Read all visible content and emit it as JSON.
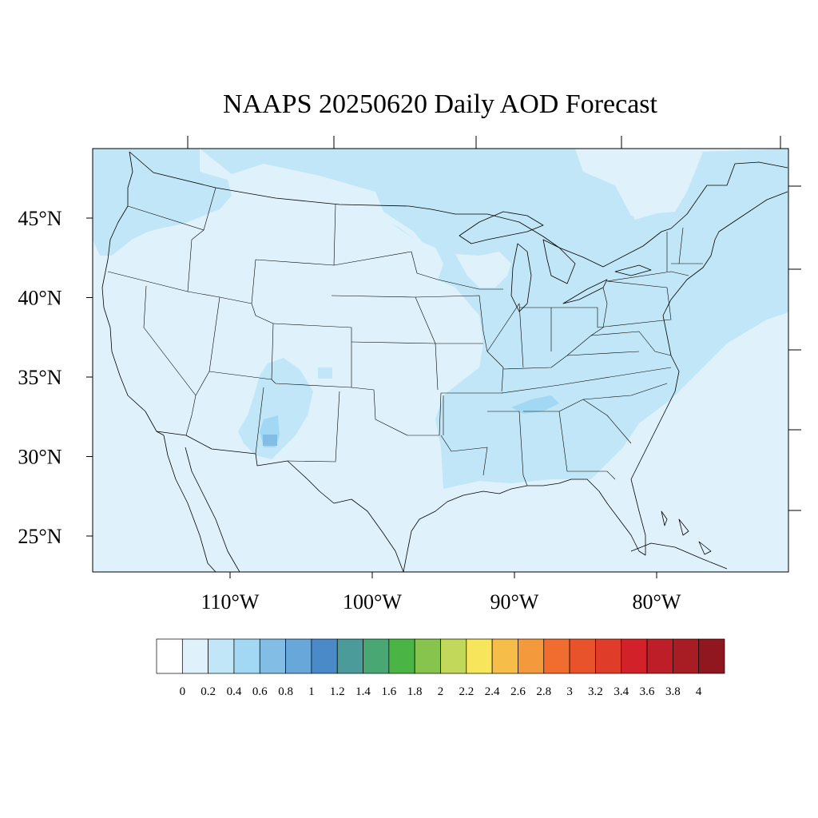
{
  "title": "NAAPS 20250620 Daily AOD Forecast",
  "lat_labels": [
    {
      "text": "45°N",
      "lat": 45
    },
    {
      "text": "40°N",
      "lat": 40
    },
    {
      "text": "35°N",
      "lat": 35
    },
    {
      "text": "30°N",
      "lat": 30
    },
    {
      "text": "25°N",
      "lat": 25
    }
  ],
  "lon_labels": [
    {
      "text": "110°W",
      "lon": -110
    },
    {
      "text": "100°W",
      "lon": -100
    },
    {
      "text": "90°W",
      "lon": -90
    },
    {
      "text": "80°W",
      "lon": -80
    }
  ],
  "colorbar": {
    "labels": [
      "0",
      "0.2",
      "0.4",
      "0.6",
      "0.8",
      "1",
      "1.2",
      "1.4",
      "1.6",
      "1.8",
      "2",
      "2.2",
      "2.4",
      "2.6",
      "2.8",
      "3",
      "3.2",
      "3.4",
      "3.6",
      "3.8",
      "4"
    ],
    "colors": [
      "#ffffff",
      "#dff2fb",
      "#c1e6f7",
      "#a2d8f3",
      "#82bde6",
      "#68a7d9",
      "#4a8ac8",
      "#4a9b9a",
      "#49a774",
      "#4ab545",
      "#86c44d",
      "#c2d85b",
      "#f7e65b",
      "#f6bd48",
      "#f49a3d",
      "#f16d2f",
      "#e8532c",
      "#e03c2a",
      "#d22129",
      "#bd1e27",
      "#a81c24",
      "#901720"
    ]
  },
  "aod_field": {
    "background_level": 0.2,
    "regions": [
      {
        "name": "Pacific Northwest",
        "aod": 0.3
      },
      {
        "name": "Northern Canada border",
        "aod": 0.3
      },
      {
        "name": "Great Lakes / Northeast",
        "aod": 0.3
      },
      {
        "name": "Atlantic coast",
        "aod": 0.3
      },
      {
        "name": "Southeast / Gulf states",
        "aod": 0.3
      },
      {
        "name": "Mississippi valley",
        "aod": 0.3
      },
      {
        "name": "New Mexico",
        "aod": 0.4
      },
      {
        "name": "Southern New Mexico max",
        "aod": 0.6
      }
    ]
  }
}
